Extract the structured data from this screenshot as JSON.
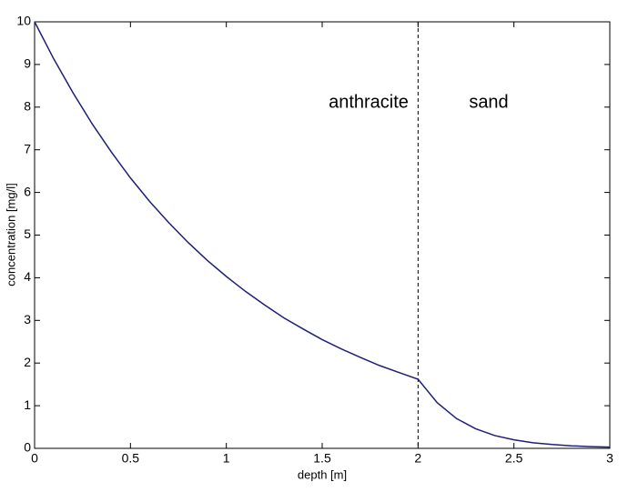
{
  "chart_data": {
    "type": "line",
    "xlabel": "depth [m]",
    "ylabel": "concentration [mg/l]",
    "annotations": [
      "anthracite",
      "sand"
    ],
    "x": [
      0,
      0.1,
      0.2,
      0.3,
      0.4,
      0.5,
      0.6,
      0.7,
      0.8,
      0.9,
      1,
      1.1,
      1.2,
      1.3,
      1.4,
      1.5,
      1.6,
      1.7,
      1.8,
      1.9,
      2,
      2.1,
      2.2,
      2.3,
      2.4,
      2.5,
      2.6,
      2.7,
      2.8,
      2.9,
      3
    ],
    "series": [
      {
        "color": "#1f1f78",
        "values": [
          10,
          9.13,
          8.34,
          7.61,
          6.95,
          6.34,
          5.79,
          5.29,
          4.83,
          4.41,
          4.03,
          3.68,
          3.36,
          3.06,
          2.8,
          2.55,
          2.33,
          2.13,
          1.94,
          1.78,
          1.62,
          1.07,
          0.7,
          0.46,
          0.3,
          0.2,
          0.13,
          0.09,
          0.06,
          0.04,
          0.03
        ]
      }
    ],
    "xlim": [
      0,
      3
    ],
    "xticks": [
      0,
      0.5,
      1,
      1.5,
      2,
      2.5,
      3
    ],
    "ylim": [
      0,
      10
    ],
    "yticks": [
      0,
      1,
      2,
      3,
      4,
      5,
      6,
      7,
      8,
      9,
      10
    ],
    "grid": false
  }
}
